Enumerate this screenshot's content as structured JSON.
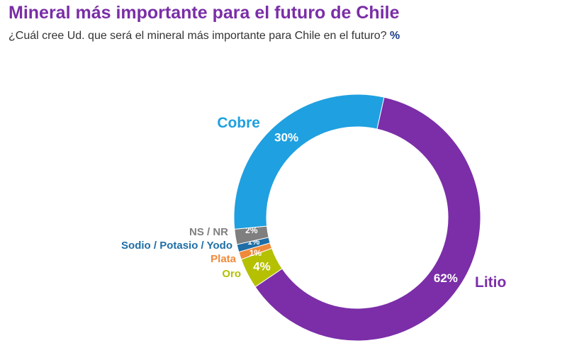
{
  "chart_data": {
    "type": "pie",
    "donut": true,
    "title": "Mineral más importante para el futuro de Chile",
    "subtitle": "¿Cuál cree Ud. que será el mineral más importante para Chile en el futuro?",
    "unit": "%",
    "slices": [
      {
        "label": "Litio",
        "value": 62,
        "color": "#7b2ea8"
      },
      {
        "label": "Oro",
        "value": 4,
        "color": "#b4c000"
      },
      {
        "label": "Plata",
        "value": 1,
        "color": "#ef8a3b"
      },
      {
        "label": "Sodio / Potasio / Yodo",
        "value": 1,
        "color": "#1f6ea6"
      },
      {
        "label": "NS / NR",
        "value": 2,
        "color": "#7f7f7f"
      },
      {
        "label": "Cobre",
        "value": 30,
        "color": "#1fa0e0"
      }
    ]
  }
}
